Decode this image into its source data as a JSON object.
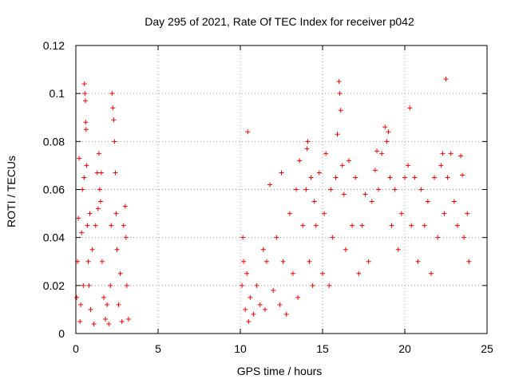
{
  "chart_data": {
    "type": "scatter",
    "title": "Day 295 of 2021, Rate Of TEC Index for receiver p042",
    "xlabel": "GPS time / hours",
    "ylabel": "ROTI / TECUs",
    "xlim": [
      0,
      25
    ],
    "ylim": [
      0,
      0.12
    ],
    "x_ticks": [
      0,
      5,
      10,
      15,
      20,
      25
    ],
    "x_tick_labels": [
      "0",
      "5",
      "10",
      "15",
      "20",
      "25"
    ],
    "y_ticks": [
      0,
      0.02,
      0.04,
      0.06,
      0.08,
      0.1,
      0.12
    ],
    "y_tick_labels": [
      "0",
      "0.02",
      "0.04",
      "0.06",
      "0.08",
      "0.1",
      "0.12"
    ],
    "grid": true,
    "legend": "none",
    "marker": "plus",
    "color": "#ff0000",
    "series": [
      {
        "points": [
          [
            0.05,
            0.015
          ],
          [
            0.1,
            0.03
          ],
          [
            0.15,
            0.048
          ],
          [
            0.2,
            0.073
          ],
          [
            0.25,
            0.005
          ],
          [
            0.3,
            0.012
          ],
          [
            0.35,
            0.042
          ],
          [
            0.4,
            0.06
          ],
          [
            0.45,
            0.02
          ],
          [
            0.5,
            0.065
          ],
          [
            0.52,
            0.104
          ],
          [
            0.55,
            0.1
          ],
          [
            0.58,
            0.097
          ],
          [
            0.6,
            0.088
          ],
          [
            0.62,
            0.085
          ],
          [
            0.65,
            0.07
          ],
          [
            0.7,
            0.045
          ],
          [
            0.75,
            0.03
          ],
          [
            0.8,
            0.02
          ],
          [
            0.85,
            0.05
          ],
          [
            0.9,
            0.01
          ],
          [
            1.0,
            0.035
          ],
          [
            1.1,
            0.004
          ],
          [
            1.2,
            0.045
          ],
          [
            1.3,
            0.067
          ],
          [
            1.35,
            0.052
          ],
          [
            1.4,
            0.075
          ],
          [
            1.45,
            0.06
          ],
          [
            1.5,
            0.055
          ],
          [
            1.55,
            0.067
          ],
          [
            1.6,
            0.03
          ],
          [
            1.7,
            0.015
          ],
          [
            1.8,
            0.006
          ],
          [
            1.9,
            0.012
          ],
          [
            2.0,
            0.004
          ],
          [
            2.1,
            0.02
          ],
          [
            2.15,
            0.045
          ],
          [
            2.2,
            0.1
          ],
          [
            2.25,
            0.094
          ],
          [
            2.3,
            0.089
          ],
          [
            2.35,
            0.08
          ],
          [
            2.4,
            0.067
          ],
          [
            2.45,
            0.05
          ],
          [
            2.5,
            0.035
          ],
          [
            2.6,
            0.012
          ],
          [
            2.7,
            0.025
          ],
          [
            2.8,
            0.005
          ],
          [
            2.9,
            0.045
          ],
          [
            3.0,
            0.053
          ],
          [
            3.05,
            0.04
          ],
          [
            3.1,
            0.02
          ],
          [
            3.2,
            0.006
          ],
          [
            10.1,
            0.02
          ],
          [
            10.15,
            0.04
          ],
          [
            10.2,
            0.03
          ],
          [
            10.3,
            0.01
          ],
          [
            10.4,
            0.025
          ],
          [
            10.45,
            0.084
          ],
          [
            10.5,
            0.005
          ],
          [
            10.6,
            0.015
          ],
          [
            10.8,
            0.008
          ],
          [
            11.0,
            0.02
          ],
          [
            11.2,
            0.012
          ],
          [
            11.4,
            0.035
          ],
          [
            11.5,
            0.01
          ],
          [
            11.6,
            0.03
          ],
          [
            11.8,
            0.062
          ],
          [
            12.0,
            0.018
          ],
          [
            12.2,
            0.04
          ],
          [
            12.4,
            0.012
          ],
          [
            12.5,
            0.067
          ],
          [
            12.6,
            0.03
          ],
          [
            12.8,
            0.008
          ],
          [
            13.0,
            0.05
          ],
          [
            13.2,
            0.025
          ],
          [
            13.4,
            0.06
          ],
          [
            13.5,
            0.015
          ],
          [
            13.6,
            0.072
          ],
          [
            13.8,
            0.045
          ],
          [
            14.0,
            0.06
          ],
          [
            14.05,
            0.077
          ],
          [
            14.1,
            0.08
          ],
          [
            14.2,
            0.03
          ],
          [
            14.3,
            0.065
          ],
          [
            14.4,
            0.02
          ],
          [
            14.5,
            0.055
          ],
          [
            14.6,
            0.045
          ],
          [
            14.8,
            0.067
          ],
          [
            15.0,
            0.025
          ],
          [
            15.1,
            0.05
          ],
          [
            15.2,
            0.075
          ],
          [
            15.4,
            0.02
          ],
          [
            15.5,
            0.06
          ],
          [
            15.6,
            0.04
          ],
          [
            15.8,
            0.065
          ],
          [
            15.9,
            0.083
          ],
          [
            16.0,
            0.105
          ],
          [
            16.05,
            0.1
          ],
          [
            16.1,
            0.093
          ],
          [
            16.2,
            0.07
          ],
          [
            16.3,
            0.058
          ],
          [
            16.4,
            0.035
          ],
          [
            16.6,
            0.072
          ],
          [
            16.8,
            0.045
          ],
          [
            17.0,
            0.065
          ],
          [
            17.2,
            0.025
          ],
          [
            17.4,
            0.045
          ],
          [
            17.6,
            0.058
          ],
          [
            17.8,
            0.03
          ],
          [
            18.0,
            0.055
          ],
          [
            18.2,
            0.068
          ],
          [
            18.3,
            0.076
          ],
          [
            18.4,
            0.06
          ],
          [
            18.6,
            0.075
          ],
          [
            18.8,
            0.086
          ],
          [
            18.9,
            0.08
          ],
          [
            19.0,
            0.084
          ],
          [
            19.1,
            0.065
          ],
          [
            19.2,
            0.045
          ],
          [
            19.4,
            0.06
          ],
          [
            19.6,
            0.035
          ],
          [
            19.8,
            0.05
          ],
          [
            20.0,
            0.065
          ],
          [
            20.2,
            0.07
          ],
          [
            20.3,
            0.094
          ],
          [
            20.4,
            0.045
          ],
          [
            20.6,
            0.065
          ],
          [
            20.8,
            0.03
          ],
          [
            21.0,
            0.06
          ],
          [
            21.2,
            0.045
          ],
          [
            21.4,
            0.055
          ],
          [
            21.6,
            0.025
          ],
          [
            21.8,
            0.065
          ],
          [
            22.0,
            0.04
          ],
          [
            22.2,
            0.07
          ],
          [
            22.3,
            0.075
          ],
          [
            22.4,
            0.05
          ],
          [
            22.5,
            0.106
          ],
          [
            22.6,
            0.065
          ],
          [
            22.8,
            0.075
          ],
          [
            23.0,
            0.055
          ],
          [
            23.2,
            0.045
          ],
          [
            23.4,
            0.074
          ],
          [
            23.5,
            0.066
          ],
          [
            23.6,
            0.04
          ],
          [
            23.8,
            0.05
          ],
          [
            23.9,
            0.03
          ]
        ]
      }
    ]
  }
}
